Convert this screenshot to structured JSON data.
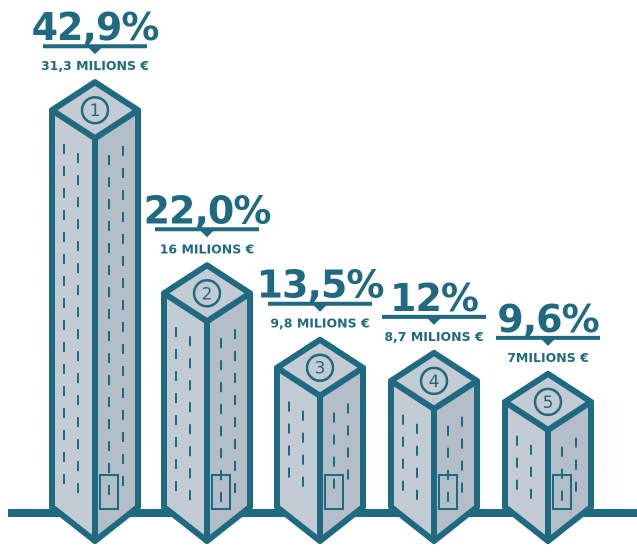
{
  "colors": {
    "primary": "#1f6a80",
    "building_fill": "#c3ccd5",
    "building_dark": "#b3bec9",
    "background": "#ffffff"
  },
  "chart_data": {
    "type": "bar",
    "title": "",
    "xlabel": "",
    "ylabel": "",
    "grid": false,
    "categories": [
      "1",
      "2",
      "3",
      "4",
      "5"
    ],
    "values": [
      42.9,
      22.0,
      13.5,
      12,
      9.6
    ],
    "value_labels": [
      "42,9%",
      "22,0%",
      "13,5%",
      "12%",
      "9,6%"
    ],
    "amounts": [
      31.3,
      16,
      9.8,
      8.7,
      7
    ],
    "amount_labels": [
      "31,3 MILIONS €",
      "16 MILIONS €",
      "9,8 MILIONS €",
      "8,7 MILIONS €",
      "7MILIONS €"
    ],
    "unit": "%"
  }
}
